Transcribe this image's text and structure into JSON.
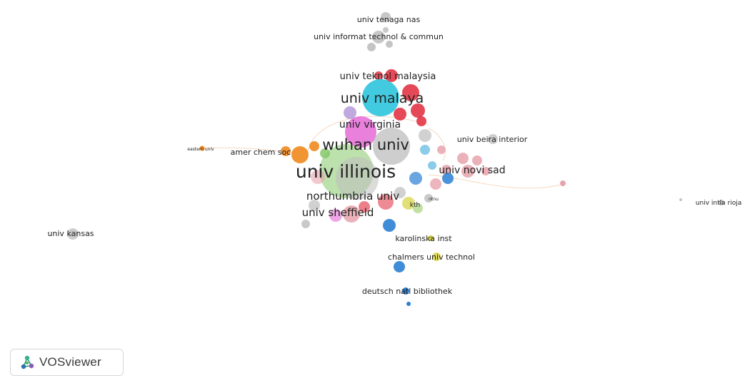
{
  "app": {
    "name": "VOSviewer",
    "logo_icon": "vosviewer-logo-icon"
  },
  "labels": {
    "univ_tenaga_nas": "univ tenaga nas",
    "univ_informat": "univ informat technol & commun",
    "univ_teknol_malaysia": "univ teknol malaysia",
    "univ_malaya": "univ malaya",
    "univ_virginia": "univ virginia",
    "wuhan_univ": "wuhan univ",
    "univ_beira_interior": "univ beira interior",
    "amer_chem_soc": "amer chem soc",
    "eastern_univ": "eastern univ",
    "univ_illinois": "univ illinois",
    "univ_novi_sad": "univ novi sad",
    "northumbria_univ": "northumbria univ",
    "univ_sheffield": "univ sheffield",
    "kth": "kth",
    "ntnu": "ntnu",
    "univ_kansas": "univ kansas",
    "karolinska_inst": "karolinska inst",
    "chalmers_univ_technol": "chalmers univ technol",
    "deutsch_natl_bibliothek": "deutsch natl bibliothek",
    "univ_intla_rioja": "univ intla rioja"
  },
  "cluster_colors": {
    "cyan": "#2ec4dd",
    "red": "#e0293a",
    "green": "#86c86a",
    "magenta": "#e46ad6",
    "orange": "#f0891e",
    "blue": "#2a7fd4",
    "yellow": "#d9d44a",
    "pink": "#e8a3ad",
    "gray": "#bdbdbd",
    "purple": "#b59ad8",
    "lightgreen": "#b9dd9a",
    "lightblue": "#7fc7e6"
  }
}
